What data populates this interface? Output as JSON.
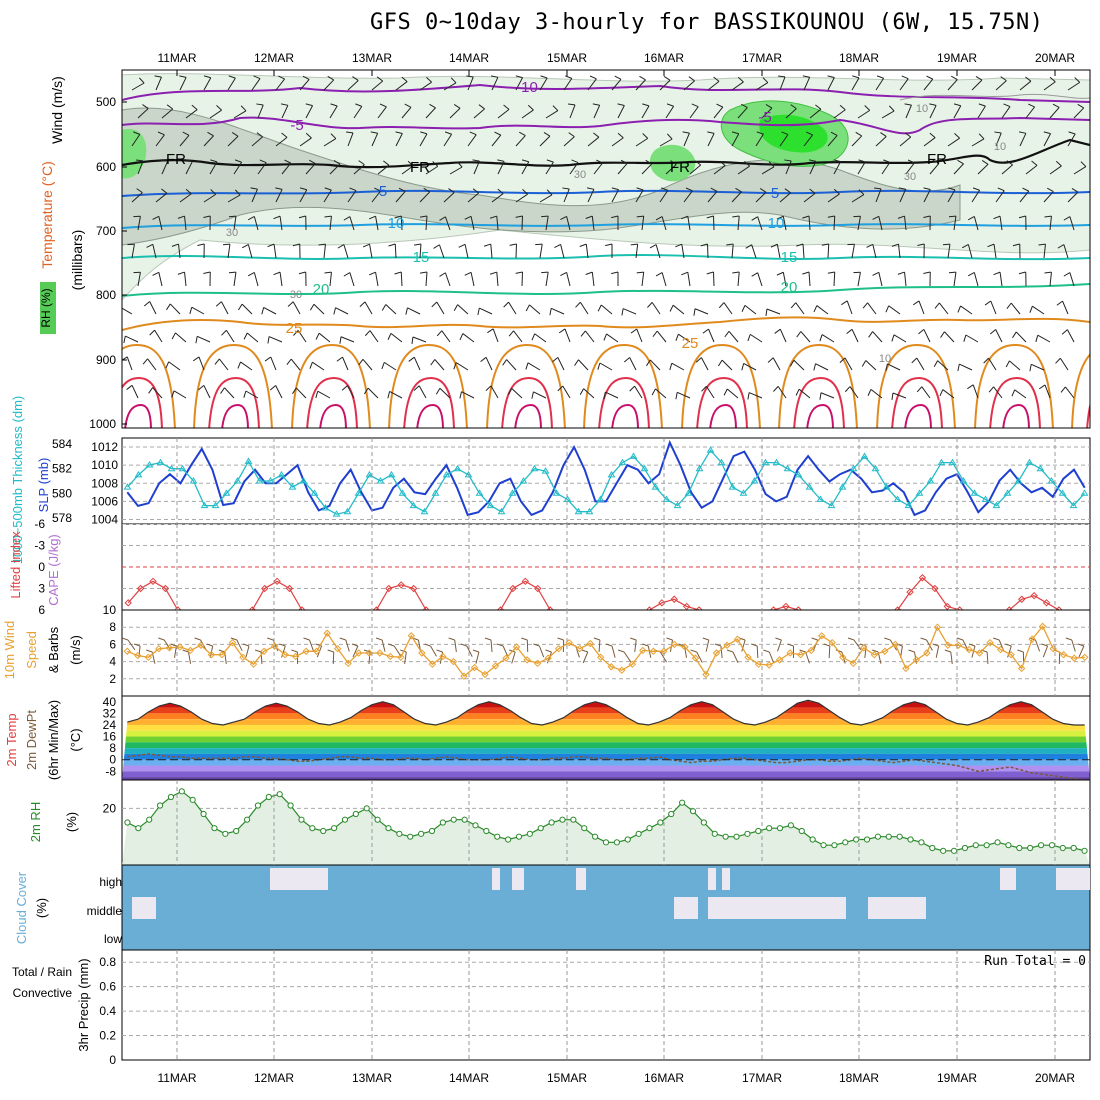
{
  "title": "GFS 0~10day 3-hourly for BASSIKOUNOU (6W, 15.75N)",
  "dates": [
    "11MAR",
    "12MAR",
    "13MAR",
    "14MAR",
    "15MAR",
    "16MAR",
    "17MAR",
    "18MAR",
    "19MAR",
    "20MAR"
  ],
  "colors": {
    "grid": "#9a9a9a",
    "temp_purple": "#8b1fb0",
    "temp_blue": "#1a5fd6",
    "temp_cyan": "#1e9fe0",
    "temp_teal": "#1bbfb0",
    "temp_green": "#1fbf8a",
    "temp_orange": "#e08a1e",
    "temp_red": "#e0304a",
    "rh_light": "#e6f2e6",
    "rh_mid": "#b8c8b8",
    "rh_green": "#22dd22",
    "slp": "#1f3fd0",
    "thickness": "#22bbc8",
    "lifted": "#e04040",
    "wind10": "#e8a030",
    "rh2m": "#2a8a2a",
    "cloud": "#6aaed6",
    "precip_total": "#2a8a2a",
    "precip_conv": "#e02020"
  },
  "panels": {
    "upper": {
      "ylabels": [
        "Wind (m/s)",
        "Temperature (°C)",
        "RH (%)",
        "(millibars)"
      ],
      "pressure_ticks": [
        "500",
        "600",
        "700",
        "800",
        "900",
        "1000"
      ],
      "contour_labels": [
        {
          "text": "-10",
          "color": "temp_purple"
        },
        {
          "text": "-5",
          "color": "temp_purple"
        },
        {
          "text": "-5",
          "color": "temp_purple"
        },
        {
          "text": "FR",
          "color": "black"
        },
        {
          "text": "FR",
          "color": "black"
        },
        {
          "text": "FR",
          "color": "black"
        },
        {
          "text": "FR",
          "color": "black"
        },
        {
          "text": "5",
          "color": "temp_blue"
        },
        {
          "text": "5",
          "color": "temp_blue"
        },
        {
          "text": "10",
          "color": "temp_cyan"
        },
        {
          "text": "10",
          "color": "temp_cyan"
        },
        {
          "text": "15",
          "color": "temp_teal"
        },
        {
          "text": "15",
          "color": "temp_teal"
        },
        {
          "text": "20",
          "color": "temp_green"
        },
        {
          "text": "20",
          "color": "temp_green"
        },
        {
          "text": "25",
          "color": "temp_orange"
        },
        {
          "text": "25",
          "color": "temp_orange"
        },
        {
          "text": "30",
          "color": "grey"
        },
        {
          "text": "30",
          "color": "grey"
        },
        {
          "text": "30",
          "color": "grey"
        },
        {
          "text": "30",
          "color": "grey"
        },
        {
          "text": "10",
          "color": "grey"
        },
        {
          "text": "10",
          "color": "grey"
        },
        {
          "text": "10",
          "color": "grey"
        }
      ]
    },
    "slp": {
      "ylabel_left": "1000~500mb Thickness (dm)",
      "ylabel_right": "SLP (mb)",
      "thickness_ticks": [
        "584",
        "582",
        "580",
        "578"
      ],
      "slp_ticks": [
        "1012",
        "1010",
        "1008",
        "1006",
        "1004"
      ]
    },
    "lifted": {
      "ylabel_left": "Lifted Index",
      "ylabel_right": "CAPE (J/kg)",
      "ticks": [
        "-6",
        "-3",
        "0",
        "3",
        "6"
      ]
    },
    "wind10": {
      "ylabel": [
        "10m Wind",
        "Speed",
        "& Barbs",
        "(m/s)"
      ],
      "ticks": [
        "10",
        "8",
        "6",
        "4",
        "2"
      ]
    },
    "temp2m": {
      "ylabel": [
        "2m Temp",
        "2m DewPt",
        "(6hr Min/Max)",
        "(°C)"
      ],
      "ticks": [
        "40",
        "32",
        "24",
        "16",
        "8",
        "0",
        "-8"
      ]
    },
    "rh2m": {
      "ylabel": [
        "2m RH",
        "(%)"
      ],
      "ticks": [
        "20"
      ]
    },
    "cloud": {
      "ylabel": [
        "Cloud Cover",
        "(%)"
      ],
      "levels": [
        "high",
        "middle",
        "low"
      ]
    },
    "precip": {
      "ylabel": [
        "Total / Rain",
        "Convective",
        "3hr Precip (mm)"
      ],
      "ticks": [
        "0.8",
        "0.6",
        "0.4",
        "0.2",
        "0"
      ],
      "run_total": "Run Total = 0"
    }
  },
  "chart_data": [
    {
      "type": "line",
      "title": "SLP (mb)",
      "series": [
        {
          "name": "SLP",
          "values": [
            1007,
            1005.5,
            1005.8,
            1008,
            1009,
            1008,
            1010,
            1011.8,
            1009.5,
            1005.6,
            1005.8,
            1008.2,
            1009.5,
            1008,
            1008,
            1009,
            1010,
            1007,
            1005,
            1005.5,
            1008,
            1009.5,
            1007,
            1005,
            1005.3,
            1007.5,
            1008.5,
            1007,
            1006.8,
            1008.5,
            1010,
            1007.5,
            1004.5,
            1004.8,
            1006,
            1008,
            1008.5,
            1006,
            1004.5,
            1005,
            1007,
            1010,
            1012,
            1009.5,
            1006,
            1006,
            1008,
            1010,
            1009.5,
            1008,
            1009,
            1012.5,
            1010,
            1007,
            1005.3,
            1006,
            1008.5,
            1011,
            1011.5,
            1009.5,
            1006.8,
            1006,
            1006.5,
            1009.5,
            1011,
            1009.5,
            1008.2,
            1009,
            1009.5,
            1008.5,
            1007,
            1007.2,
            1008,
            1007,
            1004.5,
            1005,
            1007,
            1008.5,
            1009,
            1007,
            1004.8,
            1006,
            1008.3,
            1009.5,
            1008,
            1007,
            1007.5,
            1006.5,
            1008.5,
            1009.5,
            1007.5
          ]
        }
      ],
      "ylim": [
        1003.5,
        1013
      ]
    },
    {
      "type": "line",
      "title": "1000~500mb Thickness (dm)",
      "series": [
        {
          "name": "Thickness",
          "values": [
            580.5,
            581.5,
            582.3,
            582.5,
            582,
            582,
            581,
            579,
            579,
            580,
            581,
            582.6,
            581,
            581,
            581.5,
            580.5,
            581,
            580,
            578.8,
            578.3,
            578.5,
            580,
            581.5,
            581,
            581.5,
            580,
            579,
            578.5,
            580,
            581.5,
            582,
            581.5,
            580,
            579,
            578.5,
            580,
            581,
            582,
            581.8,
            580,
            579.5,
            578.5,
            578.5,
            579.5,
            581.5,
            582.5,
            583,
            582,
            580.5,
            579.5,
            579,
            580,
            582,
            583.5,
            582.5,
            580.5,
            580,
            581,
            582.5,
            582.5,
            582,
            581.5,
            580.5,
            579.5,
            579,
            580.5,
            582,
            583,
            582,
            580.5,
            579.5,
            579,
            580,
            581,
            582.5,
            582.5,
            581,
            580,
            579.5,
            579,
            580,
            581,
            582.5,
            582,
            581,
            580,
            579,
            580
          ]
        }
      ],
      "ylim": [
        577.5,
        584.5
      ]
    },
    {
      "type": "line",
      "title": "Lifted Index",
      "series": [
        {
          "name": "Lifted Index",
          "values": [
            5,
            3,
            2,
            3,
            6,
            null,
            null,
            null,
            null,
            null,
            6,
            3,
            2,
            3,
            6,
            null,
            null,
            null,
            null,
            null,
            6,
            3,
            2.5,
            3,
            6,
            null,
            null,
            null,
            null,
            null,
            6,
            3,
            2,
            3,
            6,
            null,
            null,
            null,
            null,
            null,
            null,
            null,
            6,
            5,
            4.5,
            5.5,
            6,
            null,
            null,
            null,
            null,
            null,
            6,
            5.5,
            6,
            null,
            null,
            null,
            null,
            null,
            null,
            null,
            6,
            3.5,
            1.5,
            3,
            5.5,
            6,
            null,
            null,
            null,
            6,
            4.5,
            4,
            5,
            6
          ]
        }
      ],
      "ylim": [
        -6,
        6
      ]
    },
    {
      "type": "line",
      "title": "10m Wind Speed (m/s)",
      "series": [
        {
          "name": "Wind",
          "values": [
            5.2,
            4.7,
            4.5,
            5.5,
            5.6,
            5.7,
            5.3,
            5.9,
            4.8,
            4.8,
            6.2,
            4.5,
            3.7,
            5.2,
            5.8,
            4.8,
            4.6,
            5.2,
            5.2,
            7.3,
            5.5,
            3.8,
            5,
            5,
            5,
            4.6,
            4.5,
            7,
            5,
            3.7,
            4.6,
            4,
            2.3,
            3.3,
            2.5,
            3.5,
            4.4,
            5.7,
            4.2,
            3.8,
            4.4,
            5.5,
            6.2,
            5.5,
            6.1,
            4.5,
            3.4,
            3,
            3.7,
            5.3,
            5.2,
            5.2,
            6,
            5.7,
            4.4,
            2.5,
            5,
            5.9,
            6.6,
            4.5,
            3.7,
            3.6,
            4.2,
            5,
            4.8,
            5.3,
            7,
            6.2,
            4.5,
            3.8,
            5.6,
            4.8,
            5.2,
            6,
            3.2,
            4.2,
            5,
            8,
            5.9,
            5.9,
            5.4,
            5,
            6.2,
            5.4,
            4.8,
            3.2,
            6.6,
            8.1,
            5.5,
            4.8,
            4.4,
            4.5
          ]
        }
      ],
      "ylim": [
        0,
        10
      ]
    },
    {
      "type": "area",
      "title": "2m Temp (°C)",
      "series": [
        {
          "name": "2m Temp",
          "values": [
            26,
            28,
            33,
            37,
            39,
            37,
            33,
            28,
            25,
            24,
            26,
            28,
            33,
            37,
            39,
            37,
            33,
            28,
            25,
            24,
            26,
            29,
            34,
            38,
            40,
            38,
            33,
            28,
            25,
            24,
            26,
            29,
            34,
            38,
            40,
            38,
            34,
            29,
            25,
            24,
            26,
            29,
            34,
            38,
            40,
            38,
            34,
            29,
            25,
            24,
            26,
            29,
            34,
            38,
            40,
            38,
            33,
            28,
            25,
            24,
            26,
            29,
            34,
            39,
            41,
            39,
            34,
            29,
            25,
            24,
            26,
            29,
            34,
            38,
            40,
            38,
            33,
            28,
            25,
            24,
            26,
            29,
            34,
            38,
            40,
            38,
            33,
            28,
            25,
            24,
            24
          ]
        },
        {
          "name": "2m DewPt",
          "values": [
            2,
            3,
            4,
            3,
            2,
            2,
            1,
            1,
            1,
            1,
            1,
            2,
            2,
            1,
            1,
            0,
            -1,
            -1,
            0,
            1,
            2,
            2,
            1,
            1,
            0,
            0,
            1,
            1,
            0,
            1,
            2,
            1,
            0,
            0,
            0,
            1,
            2,
            1,
            0,
            0,
            1,
            1,
            2,
            2,
            1,
            1,
            0,
            0,
            1,
            1,
            2,
            0,
            -1,
            -2,
            -1,
            -1,
            0,
            1,
            1,
            0,
            -1,
            -2,
            -2,
            -1,
            0,
            0,
            -1,
            -1,
            0,
            1,
            0,
            -1,
            -2,
            -1,
            0,
            -1,
            -2,
            -3,
            -4,
            -6,
            -8,
            -7,
            -6,
            -5,
            -7,
            -9,
            -10,
            -11,
            -12,
            -13,
            -14
          ]
        }
      ],
      "ylim": [
        -14,
        44
      ]
    },
    {
      "type": "area",
      "title": "2m RH (%)",
      "series": [
        {
          "name": "2m RH",
          "values": [
            15,
            13,
            16,
            21,
            24,
            26,
            23,
            18,
            13,
            11,
            12,
            16,
            21,
            24,
            25,
            21,
            16,
            13,
            12,
            13,
            16,
            18,
            20,
            16,
            13,
            11,
            10,
            11,
            12,
            15,
            16,
            16,
            14,
            12,
            10,
            9,
            10,
            11,
            13,
            15,
            16,
            16,
            13,
            10,
            8,
            8,
            9,
            11,
            13,
            15,
            18,
            22,
            19,
            15,
            11,
            10,
            10,
            11,
            12,
            13,
            13,
            14,
            12,
            9,
            7,
            7,
            8,
            9,
            9,
            10,
            10,
            10,
            9,
            8,
            6,
            5,
            5,
            6,
            7,
            7,
            8,
            7,
            6,
            6,
            7,
            7,
            6,
            6,
            5
          ]
        }
      ],
      "ylim": [
        0,
        30
      ]
    },
    {
      "type": "bar",
      "title": "3hr Precip (mm)",
      "series": [
        {
          "name": "Total",
          "values": [
            0
          ]
        },
        {
          "name": "Convective",
          "values": [
            0
          ]
        }
      ],
      "ylim": [
        0,
        0.9
      ]
    }
  ]
}
